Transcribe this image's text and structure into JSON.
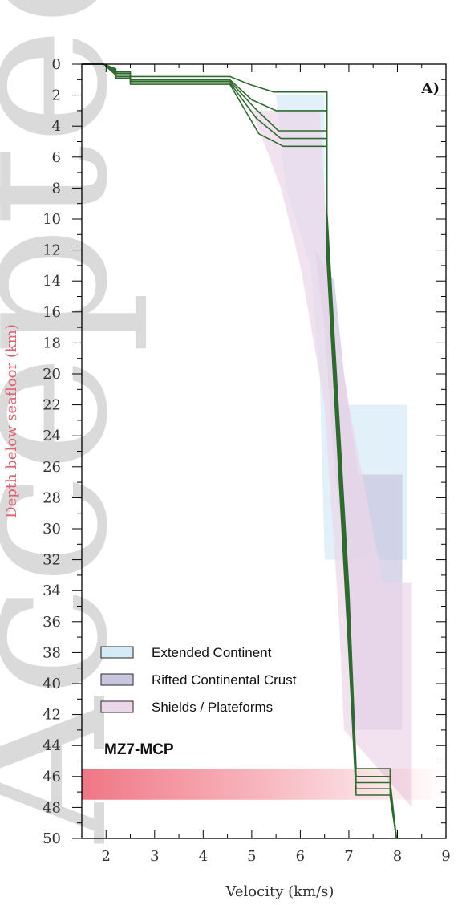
{
  "watermark": "Accepted Article",
  "chart_data": {
    "type": "line",
    "panel_label": "A)",
    "model_label": "MZ7-MCP",
    "xlabel": "Velocity (km/s)",
    "ylabel": "Depth below seafloor (km)",
    "xlim": [
      1.5,
      9
    ],
    "ylim": [
      50,
      0
    ],
    "y_inverted": true,
    "xticks": [
      "2",
      "3",
      "4",
      "5",
      "6",
      "7",
      "8",
      "9"
    ],
    "yticks": [
      "0",
      "2",
      "4",
      "6",
      "8",
      "10",
      "12",
      "14",
      "16",
      "18",
      "20",
      "22",
      "24",
      "26",
      "28",
      "30",
      "32",
      "34",
      "36",
      "38",
      "40",
      "42",
      "44",
      "46",
      "48",
      "50"
    ],
    "colors": {
      "model_line": "#2e6b2e",
      "extended_continent": "#d4eaf6",
      "rifted_continental_crust": "#c9c6e0",
      "shields_plateforms": "#ecd6ea",
      "moho_band": "#ef6f7e",
      "ylabel_color": "#e0626e"
    },
    "legend": [
      {
        "label": "Extended Continent",
        "color": "#d4eaf6"
      },
      {
        "label": "Rifted Continental Crust",
        "color": "#c9c6e0"
      },
      {
        "label": "Shields / Plateforms",
        "color": "#ecd6ea"
      }
    ],
    "legend_position": "bottom-left",
    "envelopes": [
      {
        "name": "Extended Continent",
        "color": "#d4eaf6",
        "left": [
          [
            5.5,
            2
          ],
          [
            5.7,
            8
          ],
          [
            6.2,
            13
          ],
          [
            6.4,
            20
          ],
          [
            6.5,
            32
          ]
        ],
        "right": [
          [
            6.5,
            2
          ],
          [
            6.5,
            10
          ],
          [
            6.6,
            15
          ],
          [
            6.9,
            22
          ],
          [
            8.2,
            22
          ],
          [
            8.2,
            32
          ]
        ]
      },
      {
        "name": "Rifted Continental Crust",
        "color": "#c9c6e0",
        "left": [
          [
            6.3,
            12
          ],
          [
            6.5,
            17
          ],
          [
            6.7,
            26
          ],
          [
            7.0,
            34
          ],
          [
            7.1,
            43
          ]
        ],
        "right": [
          [
            6.7,
            14
          ],
          [
            6.9,
            20
          ],
          [
            7.2,
            26.5
          ],
          [
            8.1,
            26.5
          ],
          [
            8.1,
            43
          ]
        ]
      },
      {
        "name": "Shields / Plateforms",
        "color": "#ecd6ea",
        "left": [
          [
            5.0,
            3
          ],
          [
            5.6,
            8
          ],
          [
            6.0,
            13
          ],
          [
            6.5,
            22
          ],
          [
            6.8,
            36
          ],
          [
            6.9,
            43
          ]
        ],
        "right": [
          [
            5.8,
            3
          ],
          [
            6.4,
            3
          ],
          [
            6.6,
            14
          ],
          [
            7.0,
            22
          ],
          [
            7.7,
            33.5
          ],
          [
            8.3,
            33.5
          ],
          [
            8.3,
            48
          ]
        ]
      }
    ],
    "moho_band": {
      "top": 45.5,
      "bottom": 47.5,
      "x_from": 1.5,
      "x_to": 9
    },
    "series": [
      {
        "x": [
          1.5,
          1.95,
          2.2,
          2.2,
          2.5,
          2.5,
          4.55,
          4.95,
          5.45,
          6.35,
          6.55,
          6.55,
          7.0,
          7.15,
          7.15,
          7.85,
          7.85,
          7.98
        ],
        "y": [
          0,
          0,
          0.3,
          0.5,
          0.5,
          0.8,
          0.8,
          1.3,
          1.8,
          1.8,
          1.8,
          9.6,
          34,
          45.5,
          45.5,
          45.5,
          46.3,
          50
        ]
      },
      {
        "x": [
          1.5,
          1.95,
          2.2,
          2.2,
          2.5,
          2.5,
          4.55,
          5.0,
          5.5,
          6.35,
          6.55,
          6.55,
          7.0,
          7.15,
          7.15,
          7.85,
          7.85,
          7.98
        ],
        "y": [
          0,
          0,
          0.4,
          0.6,
          0.6,
          1.0,
          1.0,
          2.3,
          3.0,
          3.0,
          3.0,
          10.4,
          35,
          46.0,
          46.0,
          46.0,
          46.6,
          50
        ]
      },
      {
        "x": [
          1.5,
          1.95,
          2.2,
          2.2,
          2.5,
          2.5,
          4.55,
          5.05,
          5.55,
          6.35,
          6.55,
          6.55,
          7.0,
          7.15,
          7.15,
          7.85,
          7.85,
          7.98
        ],
        "y": [
          0,
          0,
          0.5,
          0.7,
          0.7,
          1.1,
          1.1,
          2.8,
          4.3,
          4.3,
          4.3,
          11.0,
          36,
          46.4,
          46.4,
          46.4,
          46.9,
          50
        ]
      },
      {
        "x": [
          1.5,
          1.95,
          2.2,
          2.2,
          2.5,
          2.5,
          4.55,
          5.1,
          5.6,
          6.35,
          6.55,
          6.55,
          7.0,
          7.15,
          7.15,
          7.85,
          7.85,
          7.98
        ],
        "y": [
          0,
          0,
          0.6,
          0.8,
          0.8,
          1.2,
          1.2,
          3.5,
          4.8,
          4.8,
          4.8,
          11.8,
          37,
          46.8,
          46.8,
          46.8,
          47.1,
          50
        ]
      },
      {
        "x": [
          1.5,
          1.95,
          2.2,
          2.2,
          2.5,
          2.5,
          4.55,
          5.15,
          5.65,
          6.35,
          6.55,
          6.55,
          7.0,
          7.15,
          7.15,
          7.85,
          7.85,
          7.98
        ],
        "y": [
          0,
          0,
          0.7,
          0.9,
          0.9,
          1.3,
          1.3,
          4.5,
          5.3,
          5.3,
          5.3,
          12.6,
          38,
          47.2,
          47.2,
          47.2,
          47.3,
          50
        ]
      }
    ]
  }
}
